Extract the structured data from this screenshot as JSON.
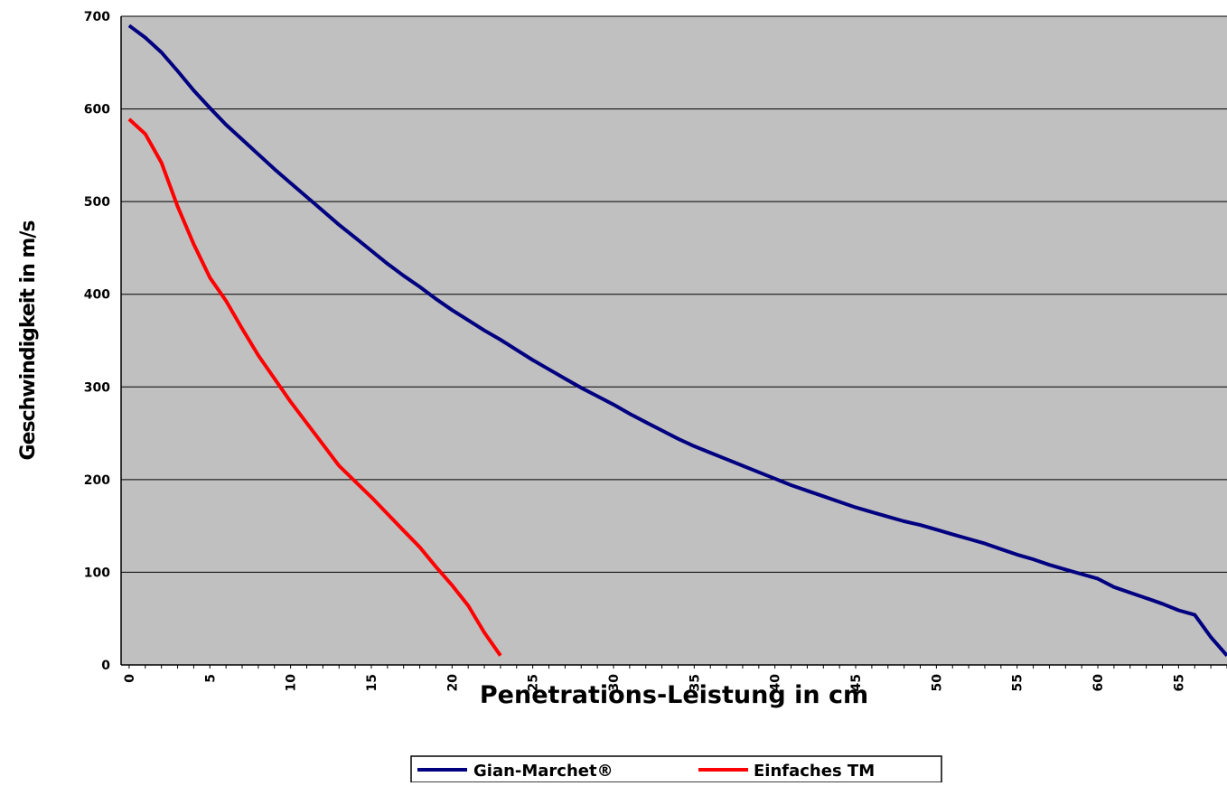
{
  "chart_data": {
    "type": "line",
    "xlabel": "Penetrations-Leistung in cm",
    "ylabel": "Geschwindigkeit in m/s",
    "xlim": [
      -0.5,
      68
    ],
    "ylim": [
      0,
      700
    ],
    "xticks": [
      0,
      5,
      10,
      15,
      20,
      25,
      30,
      35,
      40,
      45,
      50,
      55,
      60,
      65
    ],
    "yticks": [
      0,
      100,
      200,
      300,
      400,
      500,
      600,
      700
    ],
    "grid": "horizontal",
    "plot_background": "#c0c0c0",
    "legend": "bottom-center",
    "series": [
      {
        "name": "Gian-Marchet®",
        "color": "#000080",
        "x": [
          0,
          1,
          2,
          3,
          4,
          5,
          6,
          7,
          8,
          9,
          10,
          11,
          12,
          13,
          14,
          15,
          16,
          17,
          18,
          19,
          20,
          21,
          22,
          23,
          24,
          25,
          26,
          27,
          28,
          29,
          30,
          31,
          32,
          33,
          34,
          35,
          36,
          37,
          38,
          39,
          40,
          41,
          42,
          43,
          44,
          45,
          46,
          47,
          48,
          49,
          50,
          51,
          52,
          53,
          54,
          55,
          56,
          57,
          58,
          59,
          60,
          61,
          62,
          63,
          64,
          65,
          66,
          67,
          68
        ],
        "values": [
          690,
          677,
          661,
          641,
          620,
          601,
          583,
          567,
          551,
          535,
          520,
          505,
          490,
          475,
          461,
          447,
          433,
          420,
          408,
          395,
          383,
          372,
          361,
          351,
          340,
          329,
          319,
          309,
          299,
          290,
          281,
          271,
          262,
          253,
          244,
          236,
          229,
          222,
          215,
          208,
          201,
          194,
          188,
          182,
          176,
          170,
          165,
          160,
          155,
          151,
          146,
          141,
          136,
          131,
          125,
          119,
          114,
          108,
          103,
          98,
          93,
          84,
          78,
          72,
          66,
          59,
          54,
          30,
          10
        ]
      },
      {
        "name": "Einfaches TM",
        "color": "#ff0000",
        "x": [
          0,
          1,
          2,
          3,
          4,
          5,
          6,
          7,
          8,
          9,
          10,
          11,
          12,
          13,
          14,
          15,
          16,
          17,
          18,
          19,
          20,
          21,
          22,
          23
        ],
        "values": [
          589,
          573,
          542,
          495,
          454,
          418,
          393,
          363,
          334,
          309,
          284,
          261,
          238,
          215,
          198,
          181,
          163,
          145,
          127,
          106,
          86,
          64,
          35,
          10
        ]
      }
    ]
  }
}
